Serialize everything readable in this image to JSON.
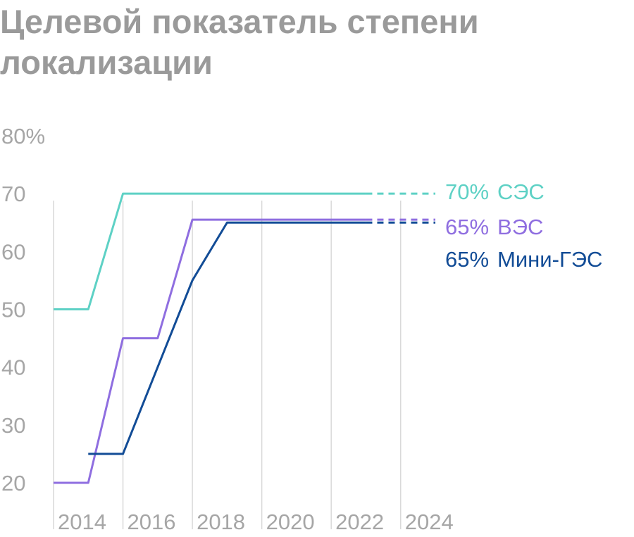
{
  "title": "Целевой показатель степени локализации",
  "chart_data": {
    "type": "line",
    "title": "Целевой показатель степени локализации",
    "xlabel": "",
    "ylabel": "",
    "x_ticks": [
      "2014",
      "2016",
      "2018",
      "2020",
      "2022",
      "2024"
    ],
    "y_ticks": [
      "80%",
      "70",
      "60",
      "50",
      "40",
      "30",
      "20"
    ],
    "xlim": [
      2013,
      2024
    ],
    "ylim": [
      20,
      80
    ],
    "grid": "vertical",
    "legend": "right, end-of-line labels",
    "series": [
      {
        "name": "СЭС",
        "label_value": "70%",
        "color": "#5ed1c5",
        "x": [
          2013,
          2014,
          2015,
          2022
        ],
        "values": [
          50,
          50,
          70,
          70
        ],
        "projection": {
          "x": [
            2022,
            2024
          ],
          "values": [
            70,
            70
          ]
        }
      },
      {
        "name": "ВЭС",
        "label_value": "65%",
        "color": "#8f6ee0",
        "x": [
          2013,
          2014,
          2015,
          2016,
          2017,
          2022
        ],
        "values": [
          20,
          20,
          45,
          45,
          65.5,
          65.5
        ],
        "projection": {
          "x": [
            2022,
            2024
          ],
          "values": [
            65.5,
            65.5
          ]
        }
      },
      {
        "name": "Мини-ГЭС",
        "label_value": "65%",
        "color": "#124c96",
        "x": [
          2014,
          2015,
          2017,
          2018,
          2022
        ],
        "values": [
          25,
          25,
          55,
          65,
          65
        ],
        "projection": {
          "x": [
            2022,
            2024
          ],
          "values": [
            65,
            65
          ]
        }
      }
    ]
  }
}
